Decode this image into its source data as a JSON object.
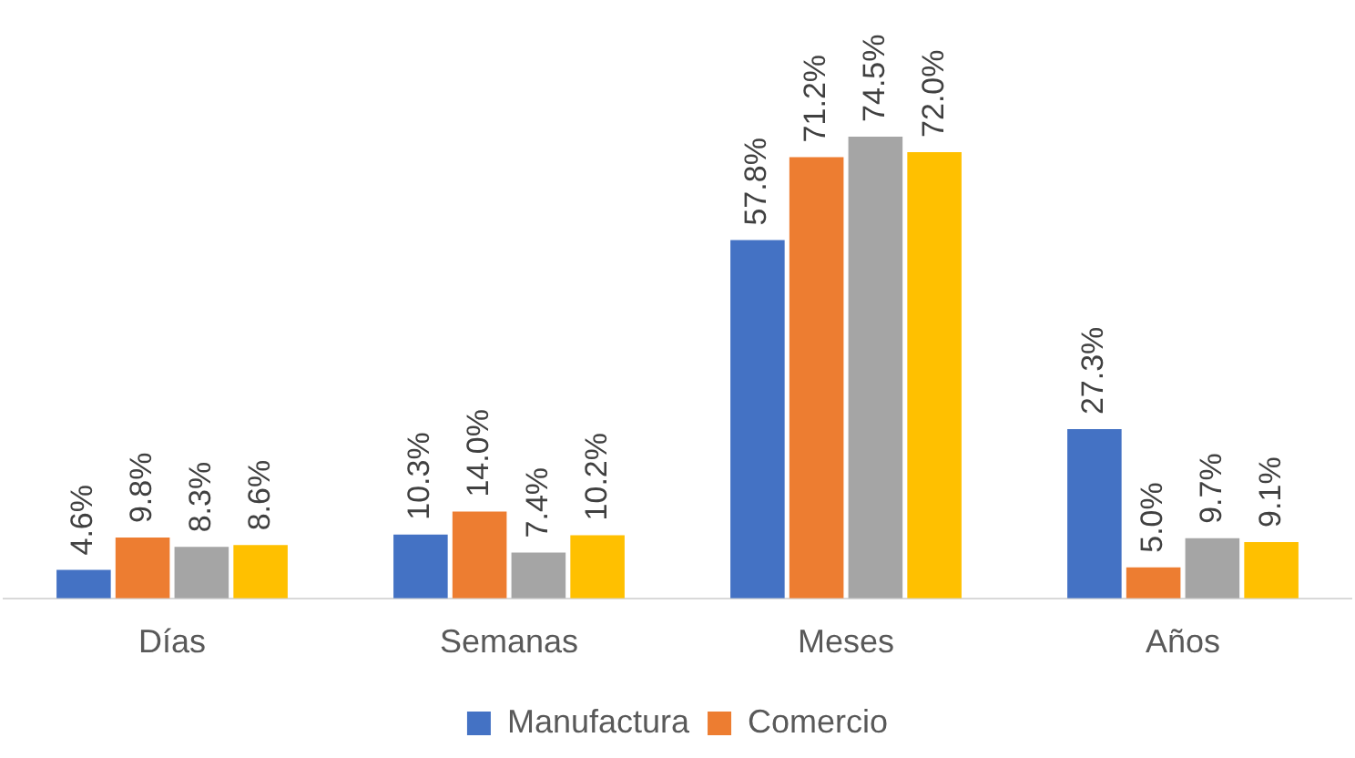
{
  "chart_data": {
    "type": "bar",
    "categories": [
      "Días",
      "Semanas",
      "Meses",
      "Años"
    ],
    "series": [
      {
        "name": "Manufactura",
        "color": "#4472c4",
        "values": [
          4.6,
          10.3,
          57.8,
          27.3
        ],
        "value_labels": [
          "4.6%",
          "10.3%",
          "57.8%",
          "27.3%"
        ]
      },
      {
        "name": "Comercio",
        "color": "#ed7d31",
        "values": [
          9.8,
          14.0,
          71.2,
          5.0
        ],
        "value_labels": [
          "9.8%",
          "14.0%",
          "71.2%",
          "5.0%"
        ]
      },
      {
        "color": "#a5a5a5",
        "values": [
          8.3,
          7.4,
          74.5,
          9.7
        ],
        "value_labels": [
          "8.3%",
          "7.4%",
          "74.5%",
          "9.7%"
        ]
      },
      {
        "color": "#ffc000",
        "values": [
          8.6,
          10.2,
          72.0,
          9.1
        ],
        "value_labels": [
          "8.6%",
          "10.2%",
          "72.0%",
          "9.1%"
        ]
      }
    ],
    "grid": false,
    "legend": "bottom"
  }
}
